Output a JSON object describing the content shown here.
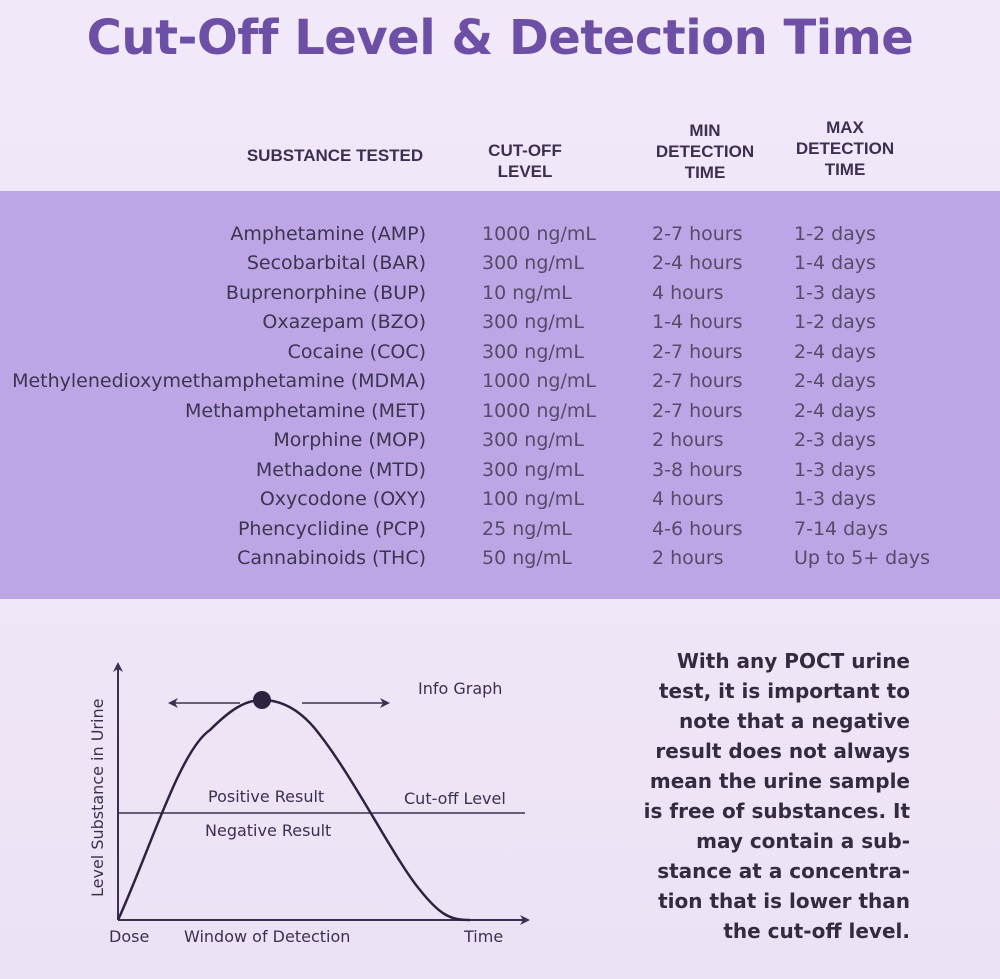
{
  "title": "Cut-Off Level & Detection Time",
  "headers": {
    "substance": "SUBSTANCE TESTED",
    "cutoff": [
      "CUT-OFF",
      "LEVEL"
    ],
    "min": [
      "MIN",
      "DETECTION",
      "TIME"
    ],
    "max": [
      "MAX",
      "DETECTION",
      "TIME"
    ]
  },
  "rows": [
    {
      "substance": "Amphetamine (AMP)",
      "cutoff": "1000 ng/mL",
      "min": "2-7 hours",
      "max": "1-2 days"
    },
    {
      "substance": "Secobarbital (BAR)",
      "cutoff": "300 ng/mL",
      "min": "2-4 hours",
      "max": "1-4 days"
    },
    {
      "substance": "Buprenorphine (BUP)",
      "cutoff": "10 ng/mL",
      "min": "4 hours",
      "max": "1-3 days"
    },
    {
      "substance": "Oxazepam (BZO)",
      "cutoff": "300 ng/mL",
      "min": "1-4 hours",
      "max": "1-2 days"
    },
    {
      "substance": "Cocaine (COC)",
      "cutoff": "300 ng/mL",
      "min": "2-7 hours",
      "max": "2-4 days"
    },
    {
      "substance": "Methylenedioxymethamphetamine (MDMA)",
      "cutoff": "1000 ng/mL",
      "min": "2-7 hours",
      "max": "2-4 days"
    },
    {
      "substance": "Methamphetamine (MET)",
      "cutoff": "1000 ng/mL",
      "min": "2-7 hours",
      "max": "2-4 days"
    },
    {
      "substance": "Morphine (MOP)",
      "cutoff": "300 ng/mL",
      "min": "2 hours",
      "max": "2-3 days"
    },
    {
      "substance": "Methadone (MTD)",
      "cutoff": "300 ng/mL",
      "min": "3-8 hours",
      "max": "1-3 days"
    },
    {
      "substance": "Oxycodone (OXY)",
      "cutoff": "100 ng/mL",
      "min": "4 hours",
      "max": "1-3 days"
    },
    {
      "substance": "Phencyclidine (PCP)",
      "cutoff": "25 ng/mL",
      "min": "4-6 hours",
      "max": "7-14 days"
    },
    {
      "substance": "Cannabinoids (THC)",
      "cutoff": "50 ng/mL",
      "min": "2 hours",
      "max": "Up to 5+ days"
    }
  ],
  "graph": {
    "y_label": "Level Substance in Urine",
    "info": "Info Graph",
    "positive": "Positive Result",
    "negative": "Negative Result",
    "cutoff": "Cut-off Level",
    "dose": "Dose",
    "window": "Window of Detection",
    "time": "Time"
  },
  "note": [
    "With any POCT urine",
    "test, it is important to",
    "note that a negative",
    "result does not always",
    "mean the urine sample",
    "is free of substances. It",
    "may contain a sub-",
    "stance at a concentra-",
    "tion that is lower than",
    "the cut-off level."
  ],
  "colors": {
    "title": "#6e4fa6",
    "band": "#bca6e6",
    "background": "#f1e8f9",
    "dot": "#2c2340"
  }
}
